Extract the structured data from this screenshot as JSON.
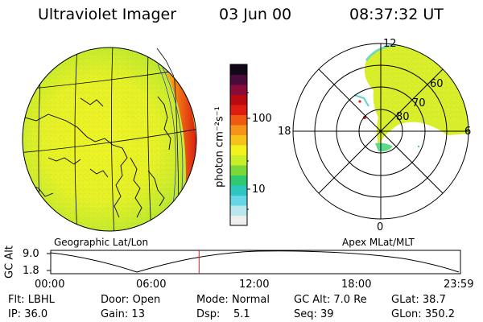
{
  "header": {
    "title": "Ultraviolet Imager",
    "date": "03 Jun 00",
    "time": "08:37:32 UT"
  },
  "colorbar": {
    "unit_label": "photon cm⁻²s⁻¹",
    "tick_100": "100",
    "tick_10": "10",
    "colors": [
      "#eeeeee",
      "#b8e8ee",
      "#66d6e6",
      "#2ec7c0",
      "#30c870",
      "#7ad838",
      "#c8ee28",
      "#f2f21e",
      "#f7c21a",
      "#f49418",
      "#ee5a14",
      "#e01c10",
      "#b80a10",
      "#8a0a3a",
      "#4a0a3a",
      "#100818"
    ]
  },
  "geo_panel": {
    "caption": "Geographic Lat/Lon"
  },
  "polar_panel": {
    "caption": "Apex MLat/MLT",
    "mlt_labels": {
      "top": "12",
      "left": "18",
      "right": "6",
      "bottom": "0"
    },
    "lat_labels": [
      "60",
      "70",
      "80"
    ]
  },
  "altitude_plot": {
    "axis_label": "GC Alt",
    "y_ticks": [
      "9.0",
      "1.8"
    ],
    "x_ticks": [
      "00:00",
      "06:00",
      "12:00",
      "18:00",
      "23:59"
    ],
    "current_time_fraction": 0.362,
    "marker_color": "#d42020"
  },
  "info": {
    "row1": [
      {
        "key": "Flt:",
        "value": "LBHL"
      },
      {
        "key": "Door:",
        "value": "Open"
      },
      {
        "key": "Mode:",
        "value": "Normal"
      },
      {
        "key": "GC Alt:",
        "value": "7.0 Re"
      },
      {
        "key": "GLat:",
        "value": "38.7"
      }
    ],
    "row2": [
      {
        "key": "IP:",
        "value": "36.0"
      },
      {
        "key": "Gain:",
        "value": "13"
      },
      {
        "key": "Dsp:",
        "value": "5.1"
      },
      {
        "key": "Seq:",
        "value": "39"
      },
      {
        "key": "GLon:",
        "value": "350.2"
      }
    ]
  }
}
